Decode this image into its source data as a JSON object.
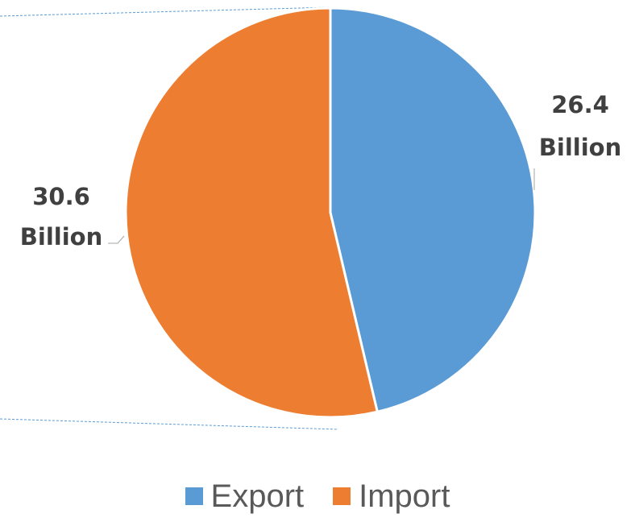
{
  "chart_data": {
    "type": "pie",
    "categories": [
      "Export",
      "Import"
    ],
    "values": [
      26.4,
      30.6
    ],
    "data_labels": [
      {
        "value": "26.4",
        "unit": "Billion"
      },
      {
        "value": "30.6",
        "unit": "Billion"
      }
    ],
    "colors": [
      "#5b9bd5",
      "#ed7d31"
    ],
    "legend_position": "bottom",
    "title": ""
  },
  "legend": {
    "items": [
      {
        "label": "Export",
        "color": "#5b9bd5"
      },
      {
        "label": "Import",
        "color": "#ed7d31"
      }
    ]
  }
}
